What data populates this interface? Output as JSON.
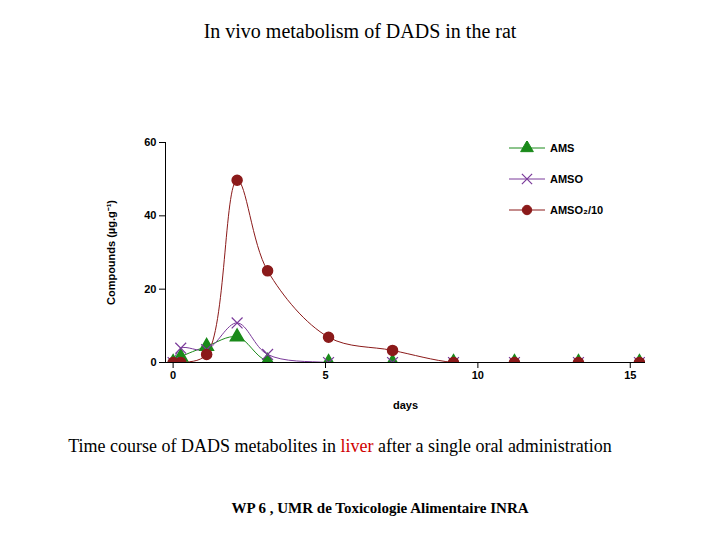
{
  "chart_data": {
    "type": "line",
    "title": "In vivo metabolism of DADS in the rat",
    "x_label": "days",
    "y_label": "Compounds (µg.g⁻¹)",
    "caption": "Time course of DADS metabolites in liver after a single oral administration",
    "caption_highlight": "liver",
    "footer": "WP 6 , UMR de Toxicologie Alimentaire INRA",
    "x": [
      0,
      0.25,
      1.1,
      2.1,
      3.1,
      5.1,
      7.2,
      9.2,
      11.2,
      13.3,
      15.3
    ],
    "series": [
      {
        "name": "AMS",
        "color": "#1a8a1a",
        "marker": "triangle",
        "values": [
          0,
          1.5,
          4.4,
          7,
          0.3,
          0,
          0,
          0,
          0,
          0,
          0
        ]
      },
      {
        "name": "AMSO",
        "color": "#7a3a9a",
        "marker": "x",
        "values": [
          0,
          3.9,
          3.5,
          10.8,
          2.2,
          0,
          0,
          0,
          0,
          0,
          0
        ]
      },
      {
        "name": "AMSO₂/10",
        "color": "#8b1a1a",
        "marker": "circle",
        "values": [
          0,
          0,
          2.2,
          49.7,
          25,
          6.9,
          3.3,
          0,
          0,
          0,
          0
        ]
      }
    ],
    "xlim": [
      -0.25,
      15.5
    ],
    "xticks": [
      0,
      5,
      10,
      15
    ],
    "ylim": [
      0,
      60
    ],
    "yticks": [
      0,
      20,
      40,
      60
    ],
    "grid": false,
    "legend": "top-right"
  }
}
